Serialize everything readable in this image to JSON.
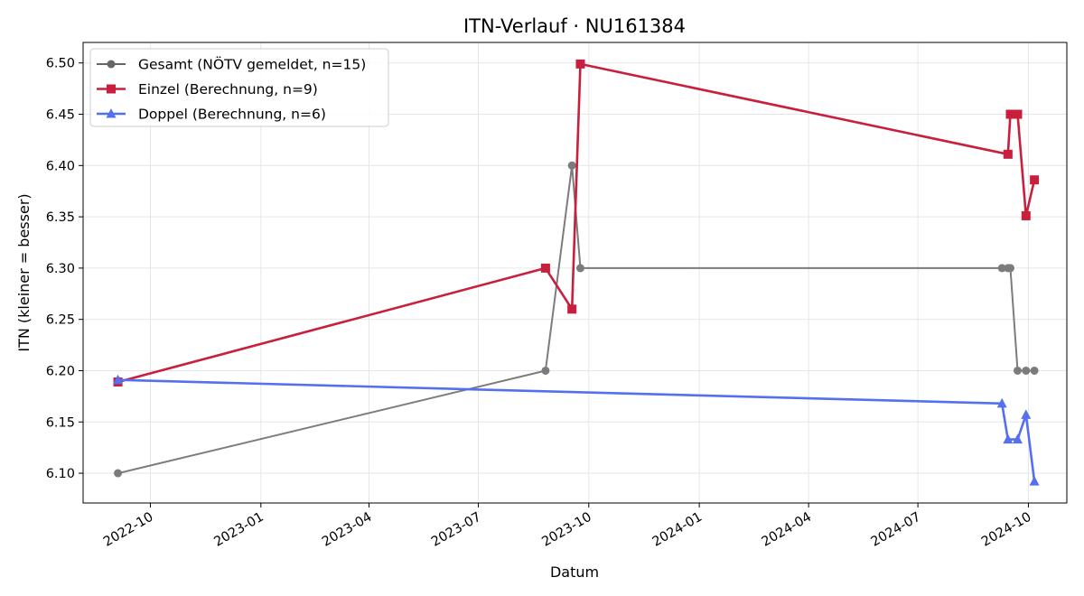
{
  "chart_data": {
    "type": "line",
    "title": "ITN-Verlauf · NU161384",
    "xlabel": "Datum",
    "ylabel": "ITN  (kleiner = besser)",
    "xlim": [
      "2022-08-06",
      "2024-11-02"
    ],
    "ylim": [
      6.071,
      6.52
    ],
    "grid": true,
    "legend_position": "top-left",
    "x_ticks": [
      {
        "date": "2022-10-01",
        "label": "2022-10"
      },
      {
        "date": "2023-01-01",
        "label": "2023-01"
      },
      {
        "date": "2023-04-01",
        "label": "2023-04"
      },
      {
        "date": "2023-07-01",
        "label": "2023-07"
      },
      {
        "date": "2023-10-01",
        "label": "2023-10"
      },
      {
        "date": "2024-01-01",
        "label": "2024-01"
      },
      {
        "date": "2024-04-01",
        "label": "2024-04"
      },
      {
        "date": "2024-07-01",
        "label": "2024-07"
      },
      {
        "date": "2024-10-01",
        "label": "2024-10"
      }
    ],
    "y_ticks": [
      {
        "value": 6.1,
        "label": "6.10"
      },
      {
        "value": 6.15,
        "label": "6.15"
      },
      {
        "value": 6.2,
        "label": "6.20"
      },
      {
        "value": 6.25,
        "label": "6.25"
      },
      {
        "value": 6.3,
        "label": "6.30"
      },
      {
        "value": 6.35,
        "label": "6.35"
      },
      {
        "value": 6.4,
        "label": "6.40"
      },
      {
        "value": 6.45,
        "label": "6.45"
      },
      {
        "value": 6.5,
        "label": "6.50"
      }
    ],
    "series": [
      {
        "name": "Gesamt (NÖTV gemeldet, n=15)",
        "color": "#666666",
        "marker": "circle",
        "points": [
          {
            "x": "2022-09-04",
            "y": 6.1
          },
          {
            "x": "2023-08-26",
            "y": 6.2
          },
          {
            "x": "2023-09-17",
            "y": 6.4
          },
          {
            "x": "2023-09-24",
            "y": 6.3
          },
          {
            "x": "2024-09-09",
            "y": 6.3
          },
          {
            "x": "2024-09-14",
            "y": 6.3
          },
          {
            "x": "2024-09-16",
            "y": 6.3
          },
          {
            "x": "2024-09-22",
            "y": 6.2
          },
          {
            "x": "2024-09-29",
            "y": 6.2
          },
          {
            "x": "2024-10-06",
            "y": 6.2
          }
        ]
      },
      {
        "name": "Einzel (Berechnung, n=9)",
        "color": "#c8203c",
        "marker": "square",
        "points": [
          {
            "x": "2022-09-04",
            "y": 6.189
          },
          {
            "x": "2023-08-26",
            "y": 6.3
          },
          {
            "x": "2023-09-17",
            "y": 6.26
          },
          {
            "x": "2023-09-24",
            "y": 6.499
          },
          {
            "x": "2024-09-14",
            "y": 6.411
          },
          {
            "x": "2024-09-16",
            "y": 6.45
          },
          {
            "x": "2024-09-22",
            "y": 6.45
          },
          {
            "x": "2024-09-29",
            "y": 6.351
          },
          {
            "x": "2024-10-06",
            "y": 6.386
          }
        ]
      },
      {
        "name": "Doppel (Berechnung, n=6)",
        "color": "#5470ee",
        "marker": "triangle",
        "points": [
          {
            "x": "2022-09-04",
            "y": 6.191
          },
          {
            "x": "2024-09-09",
            "y": 6.168
          },
          {
            "x": "2024-09-14",
            "y": 6.133
          },
          {
            "x": "2024-09-22",
            "y": 6.133
          },
          {
            "x": "2024-09-29",
            "y": 6.157
          },
          {
            "x": "2024-10-06",
            "y": 6.092
          }
        ]
      }
    ]
  }
}
